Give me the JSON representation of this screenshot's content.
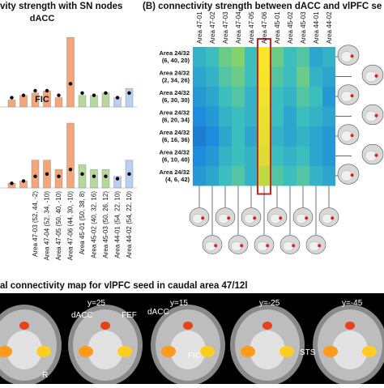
{
  "panel_a": {
    "title": "vity strength with SN nodes",
    "tick_labels": [
      "Area 47-03 (52, 44, -2)",
      "Area 47-04 (52, 34, -10)",
      "Area 47-05 (50, 40, -10)",
      "Area 47-06 (44, 30, -10)",
      "Area 45-01 (50, 38, 8)",
      "Area 45-02 (40, 32, 16)",
      "Area 45-03 (50, 26, 12)",
      "Area 44-01 (54, 22, 10)",
      "Area 44-02 (54, 22, 10)"
    ]
  },
  "panel_b": {
    "title": "(B) connectivity strength between dACC and vlPFC se",
    "row_labels": [
      {
        "l1": "Area 24/32",
        "l2": "(6, 40, 20)"
      },
      {
        "l1": "Area 24/32",
        "l2": "(2, 34, 26)"
      },
      {
        "l1": "Area 24/32",
        "l2": "(6, 30, 30)"
      },
      {
        "l1": "Area 24/32",
        "l2": "(6, 20, 34)"
      },
      {
        "l1": "Area 24/32",
        "l2": "(6, 16, 36)"
      },
      {
        "l1": "Area 24/32",
        "l2": "(6, 10, 40)"
      },
      {
        "l1": "Area 24/32",
        "l2": "(4, 6, 42)"
      }
    ],
    "col_labels": [
      "Area 47-01",
      "Area 47-02",
      "Area 47-03",
      "Area 47-04",
      "Area 47-05",
      "Area 47-06",
      "Area 45-01",
      "Area 45-02",
      "Area 45-03",
      "Area 44-01",
      "Area 44-02"
    ]
  },
  "panel_c": {
    "title": "al connectivity map for vlPFC seed in caudal area 47/12l",
    "slice_labels": [
      "y=25",
      "y=15",
      "y=-25",
      "y=-45"
    ],
    "annotations": [
      "dACC",
      "FEF",
      "dACC",
      "FIC",
      "STS",
      "R"
    ]
  },
  "colors": {
    "orange": "#f2a679",
    "green": "#b5d99c",
    "blue": "#b8cff0",
    "highlight": "#cc2222"
  },
  "chart_data": [
    {
      "type": "bar",
      "title": "dACC",
      "categories": [
        "Area 47-01",
        "Area 47-02",
        "Area 47-03",
        "Area 47-04",
        "Area 47-05",
        "Area 47-06",
        "Area 45-01",
        "Area 45-02",
        "Area 45-03",
        "Area 44-01",
        "Area 44-02"
      ],
      "values": [
        0.03,
        0.05,
        0.06,
        0.07,
        0.04,
        0.3,
        0.05,
        0.05,
        0.06,
        0.04,
        0.08
      ],
      "means": [
        0.04,
        0.05,
        0.07,
        0.07,
        0.05,
        0.1,
        0.06,
        0.05,
        0.06,
        0.04,
        0.06
      ],
      "bar_colors": [
        "orange",
        "orange",
        "orange",
        "orange",
        "orange",
        "orange",
        "green",
        "green",
        "green",
        "blue",
        "blue"
      ],
      "ylim": [
        0,
        0.35
      ]
    },
    {
      "type": "bar",
      "title": "FIC",
      "categories": [
        "Area 47-01",
        "Area 47-02",
        "Area 47-03",
        "Area 47-04",
        "Area 47-05",
        "Area 47-06",
        "Area 45-01",
        "Area 45-02",
        "Area 45-03",
        "Area 44-01",
        "Area 44-02"
      ],
      "values": [
        0.02,
        0.03,
        0.12,
        0.12,
        0.08,
        0.28,
        0.1,
        0.08,
        0.08,
        0.05,
        0.12
      ],
      "means": [
        0.02,
        0.03,
        0.05,
        0.06,
        0.05,
        0.08,
        0.06,
        0.05,
        0.05,
        0.04,
        0.06
      ],
      "bar_colors": [
        "orange",
        "orange",
        "orange",
        "orange",
        "orange",
        "orange",
        "green",
        "green",
        "green",
        "blue",
        "blue"
      ],
      "ylim": [
        0,
        0.35
      ]
    },
    {
      "type": "heatmap",
      "rows": [
        "Area 24/32 (6, 40, 20)",
        "Area 24/32 (2, 34, 26)",
        "Area 24/32 (6, 30, 30)",
        "Area 24/32 (6, 20, 34)",
        "Area 24/32 (6, 16, 36)",
        "Area 24/32 (6, 10, 40)",
        "Area 24/32 (4, 6, 42)"
      ],
      "columns": [
        "Area 47-01",
        "Area 47-02",
        "Area 47-03",
        "Area 47-04",
        "Area 47-05",
        "Area 47-06",
        "Area 45-01",
        "Area 45-02",
        "Area 45-03",
        "Area 44-01",
        "Area 44-02"
      ],
      "values": [
        [
          0.4,
          0.45,
          0.55,
          0.6,
          0.45,
          0.9,
          0.55,
          0.45,
          0.5,
          0.35,
          0.4
        ],
        [
          0.35,
          0.4,
          0.5,
          0.55,
          0.45,
          0.88,
          0.5,
          0.45,
          0.55,
          0.4,
          0.35
        ],
        [
          0.3,
          0.35,
          0.45,
          0.5,
          0.4,
          0.85,
          0.45,
          0.4,
          0.5,
          0.45,
          0.3
        ],
        [
          0.25,
          0.3,
          0.4,
          0.45,
          0.4,
          0.82,
          0.45,
          0.35,
          0.45,
          0.4,
          0.35
        ],
        [
          0.2,
          0.25,
          0.35,
          0.45,
          0.35,
          0.8,
          0.4,
          0.35,
          0.4,
          0.35,
          0.3
        ],
        [
          0.25,
          0.3,
          0.4,
          0.45,
          0.4,
          0.75,
          0.45,
          0.4,
          0.45,
          0.35,
          0.3
        ],
        [
          0.3,
          0.35,
          0.45,
          0.5,
          0.4,
          0.7,
          0.5,
          0.45,
          0.5,
          0.4,
          0.35
        ]
      ],
      "highlight_column": "Area 47-06"
    }
  ]
}
